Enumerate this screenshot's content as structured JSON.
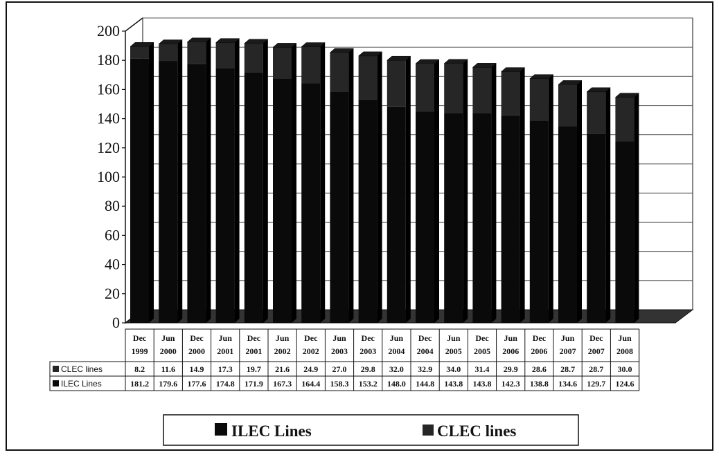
{
  "chart_data": {
    "type": "bar",
    "stacked": true,
    "three_d": true,
    "categories": [
      [
        "Dec",
        "1999"
      ],
      [
        "Jun",
        "2000"
      ],
      [
        "Dec",
        "2000"
      ],
      [
        "Jun",
        "2001"
      ],
      [
        "Dec",
        "2001"
      ],
      [
        "Jun",
        "2002"
      ],
      [
        "Dec",
        "2002"
      ],
      [
        "Jun",
        "2003"
      ],
      [
        "Dec",
        "2003"
      ],
      [
        "Jun",
        "2004"
      ],
      [
        "Dec",
        "2004"
      ],
      [
        "Jun",
        "2005"
      ],
      [
        "Dec",
        "2005"
      ],
      [
        "Jun",
        "2006"
      ],
      [
        "Dec",
        "2006"
      ],
      [
        "Jun",
        "2007"
      ],
      [
        "Dec",
        "2007"
      ],
      [
        "Jun",
        "2008"
      ]
    ],
    "series": [
      {
        "name": "ILEC Lines",
        "color": "#0a0a0a",
        "values": [
          181.2,
          179.6,
          177.6,
          174.8,
          171.9,
          167.3,
          164.4,
          158.3,
          153.2,
          148.0,
          144.8,
          143.8,
          143.8,
          142.3,
          138.8,
          134.6,
          129.7,
          124.6
        ],
        "labels": [
          "181.2",
          "179.6",
          "177.6",
          "174.8",
          "171.9",
          "167.3",
          "164.4",
          "158.3",
          "153.2",
          "148.0",
          "144.8",
          "143.8",
          "143.8",
          "142.3",
          "138.8",
          "134.6",
          "129.7",
          "124.6"
        ]
      },
      {
        "name": "CLEC lines",
        "color": "#262626",
        "values": [
          8.2,
          11.6,
          14.9,
          17.3,
          19.7,
          21.6,
          24.9,
          27.0,
          29.8,
          32.0,
          32.9,
          34.0,
          31.4,
          29.9,
          28.6,
          28.7,
          28.7,
          30.0
        ],
        "labels": [
          "8.2",
          "11.6",
          "14.9",
          "17.3",
          "19.7",
          "21.6",
          "24.9",
          "27.0",
          "29.8",
          "32.0",
          "32.9",
          "34.0",
          "31.4",
          "29.9",
          "28.6",
          "28.7",
          "28.7",
          "30.0"
        ]
      }
    ],
    "table_rows": [
      "CLEC lines",
      "ILEC Lines"
    ],
    "y_ticks": [
      "0",
      "20",
      "40",
      "60",
      "80",
      "100",
      "120",
      "140",
      "160",
      "180",
      "200"
    ],
    "ylim": [
      0,
      200
    ],
    "grid": true,
    "legend": {
      "placement": "bottom-center",
      "items": [
        "ILEC Lines",
        "CLEC lines"
      ]
    }
  }
}
